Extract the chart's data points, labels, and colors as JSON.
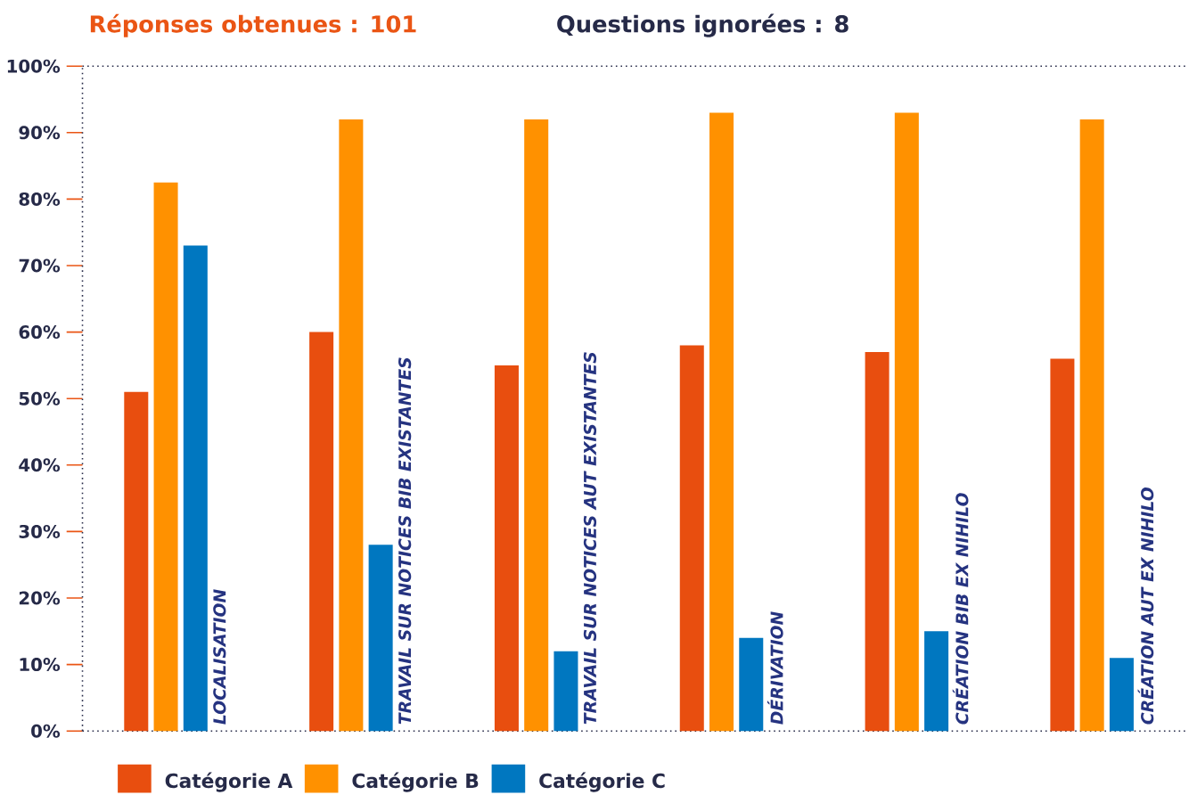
{
  "chart_data": {
    "type": "bar",
    "title": "Réponses obtenues : 101",
    "subtitle": "Questions ignorées : 8",
    "categories": [
      "LOCALISATION",
      "TRAVAIL SUR NOTICES BIB EXISTANTES",
      "TRAVAIL SUR NOTICES AUT EXISTANTES",
      "DÉRIVATION",
      "CRÉATION BIB EX NIHILO",
      "CRÉATION AUT EX NIHILO"
    ],
    "series": [
      {
        "name": "Catégorie A",
        "color": "#e84e0f",
        "values": [
          51,
          60,
          55,
          58,
          57,
          56
        ]
      },
      {
        "name": "Catégorie B",
        "color": "#ff9100",
        "values": [
          82.5,
          92,
          92,
          93,
          93,
          92
        ]
      },
      {
        "name": "Catégorie C",
        "color": "#0077c0",
        "values": [
          73,
          28,
          12,
          14,
          15,
          11
        ]
      }
    ],
    "ylim": [
      0,
      100
    ],
    "yticks": [
      {
        "value": 0,
        "label": "0%"
      },
      {
        "value": 10,
        "label": "10%"
      },
      {
        "value": 20,
        "label": "20%"
      },
      {
        "value": 30,
        "label": "30%"
      },
      {
        "value": 40,
        "label": "40%"
      },
      {
        "value": 50,
        "label": "50%"
      },
      {
        "value": 60,
        "label": "60%"
      },
      {
        "value": 70,
        "label": "70%"
      },
      {
        "value": 80,
        "label": "80%"
      },
      {
        "value": 90,
        "label": "90%"
      },
      {
        "value": 100,
        "label": "100%"
      }
    ],
    "ref_lines": [
      {
        "axis": "y",
        "value": 100,
        "color": "#262a48",
        "line_style": "dotted"
      }
    ],
    "legend": "bottom"
  }
}
